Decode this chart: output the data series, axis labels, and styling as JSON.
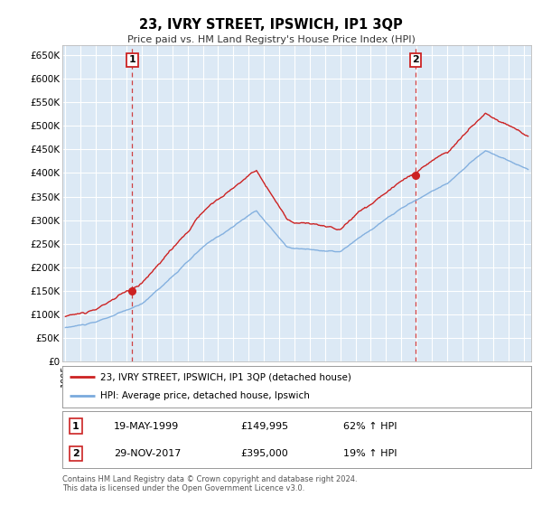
{
  "title": "23, IVRY STREET, IPSWICH, IP1 3QP",
  "subtitle": "Price paid vs. HM Land Registry's House Price Index (HPI)",
  "background_color": "#ffffff",
  "plot_bg_color": "#dce9f5",
  "grid_color": "#ffffff",
  "hpi_color": "#7aaadd",
  "price_color": "#cc2222",
  "ylim": [
    0,
    670000
  ],
  "yticks": [
    0,
    50000,
    100000,
    150000,
    200000,
    250000,
    300000,
    350000,
    400000,
    450000,
    500000,
    550000,
    600000,
    650000
  ],
  "ytick_labels": [
    "£0",
    "£50K",
    "£100K",
    "£150K",
    "£200K",
    "£250K",
    "£300K",
    "£350K",
    "£400K",
    "£450K",
    "£500K",
    "£550K",
    "£600K",
    "£650K"
  ],
  "xlim_start": 1994.8,
  "xlim_end": 2025.5,
  "sale1_date": 1999.38,
  "sale1_price": 149995,
  "sale2_date": 2017.92,
  "sale2_price": 395000,
  "legend_line1": "23, IVRY STREET, IPSWICH, IP1 3QP (detached house)",
  "legend_line2": "HPI: Average price, detached house, Ipswich",
  "table_row1": [
    "1",
    "19-MAY-1999",
    "£149,995",
    "62% ↑ HPI"
  ],
  "table_row2": [
    "2",
    "29-NOV-2017",
    "£395,000",
    "19% ↑ HPI"
  ],
  "footnote1": "Contains HM Land Registry data © Crown copyright and database right 2024.",
  "footnote2": "This data is licensed under the Open Government Licence v3.0."
}
